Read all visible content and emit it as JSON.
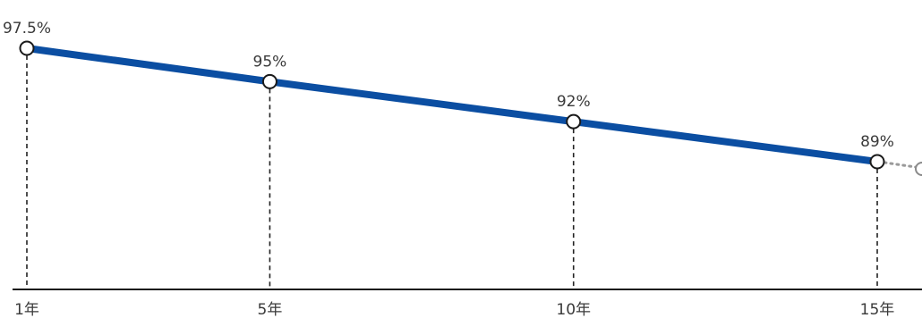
{
  "chart_data": {
    "type": "line",
    "x": [
      1,
      5,
      10,
      15
    ],
    "x_tick_labels": [
      "1年",
      "5年",
      "10年",
      "15年"
    ],
    "series": [
      {
        "values": [
          97.5,
          95,
          92,
          89
        ],
        "data_labels": [
          "97.5%",
          "95%",
          "92%",
          "89%"
        ],
        "color": "#0b4ea2"
      }
    ],
    "continuation": {
      "style": "dotted",
      "color": "#9a9a9a"
    },
    "grid": false,
    "axis_color": "#1a1a1a"
  }
}
